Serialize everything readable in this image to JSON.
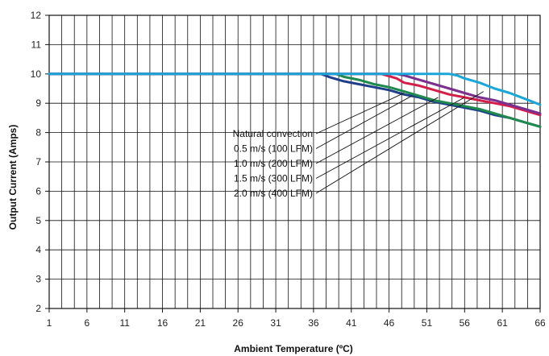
{
  "chart_data": {
    "type": "line",
    "title": "",
    "xlabel": "Ambient Temperature (ºC)",
    "ylabel": "Output Current (Amps)",
    "xlim": [
      1,
      66
    ],
    "ylim": [
      2,
      12
    ],
    "x_ticks": [
      1,
      6,
      11,
      16,
      21,
      26,
      31,
      36,
      41,
      46,
      51,
      56,
      61,
      66
    ],
    "y_ticks": [
      2,
      3,
      4,
      5,
      6,
      7,
      8,
      9,
      10,
      11,
      12
    ],
    "grid": true,
    "colors": {
      "natural": "#1f3f8a",
      "ms05": "#1e8a4e",
      "ms10": "#d21f4a",
      "ms15": "#7b2f8f",
      "ms20": "#1aa6d8"
    },
    "series": [
      {
        "key": "natural",
        "name": "Natural convection",
        "x": [
          1,
          37,
          38,
          40,
          42,
          44,
          46,
          48,
          50,
          52,
          54,
          56,
          58,
          60,
          62,
          64,
          66
        ],
        "y": [
          10,
          10,
          9.9,
          9.75,
          9.65,
          9.55,
          9.45,
          9.3,
          9.2,
          9.05,
          8.95,
          8.85,
          8.75,
          8.6,
          8.5,
          8.35,
          8.2
        ]
      },
      {
        "key": "ms05",
        "name": "0.5 m/s (100 LFM)",
        "x": [
          1,
          39,
          40,
          42,
          44,
          46,
          48,
          50,
          52,
          54,
          56,
          58,
          60,
          62,
          64,
          66
        ],
        "y": [
          10,
          10,
          9.9,
          9.8,
          9.65,
          9.55,
          9.4,
          9.25,
          9.1,
          9.0,
          8.9,
          8.8,
          8.65,
          8.5,
          8.35,
          8.2
        ]
      },
      {
        "key": "ms10",
        "name": "1.0 m/s (200 LFM)",
        "x": [
          1,
          45,
          47,
          48,
          50,
          52,
          54,
          56,
          58,
          60,
          62,
          64,
          66
        ],
        "y": [
          10,
          10,
          9.85,
          9.7,
          9.6,
          9.45,
          9.3,
          9.2,
          9.1,
          9.0,
          8.9,
          8.75,
          8.6
        ]
      },
      {
        "key": "ms15",
        "name": "1.5 m/s (300 LFM)",
        "x": [
          1,
          47,
          48,
          50,
          52,
          54,
          56,
          58,
          60,
          62,
          64,
          66
        ],
        "y": [
          10,
          10,
          9.95,
          9.8,
          9.65,
          9.5,
          9.35,
          9.2,
          9.1,
          8.95,
          8.8,
          8.65
        ]
      },
      {
        "key": "ms20",
        "name": "2.0 m/s (400 LFM)",
        "x": [
          1,
          54,
          55,
          56,
          58,
          60,
          62,
          64,
          66
        ],
        "y": [
          10,
          10,
          9.95,
          9.85,
          9.7,
          9.5,
          9.35,
          9.15,
          8.95
        ]
      }
    ],
    "legend": {
      "placement": "center-right",
      "entries": [
        {
          "key": "natural",
          "label": "Natural convection",
          "at": [
            48,
            9.35
          ]
        },
        {
          "key": "ms05",
          "label": "0.5 m/s (100 LFM)",
          "at": [
            49,
            9.25
          ]
        },
        {
          "key": "ms10",
          "label": "1.0 m/s (200 LFM)",
          "at": [
            52.5,
            9.2
          ]
        },
        {
          "key": "ms15",
          "label": "1.5 m/s (300 LFM)",
          "at": [
            56,
            9.2
          ]
        },
        {
          "key": "ms20",
          "label": "2.0 m/s (400 LFM)",
          "at": [
            58.5,
            9.4
          ]
        }
      ]
    }
  }
}
